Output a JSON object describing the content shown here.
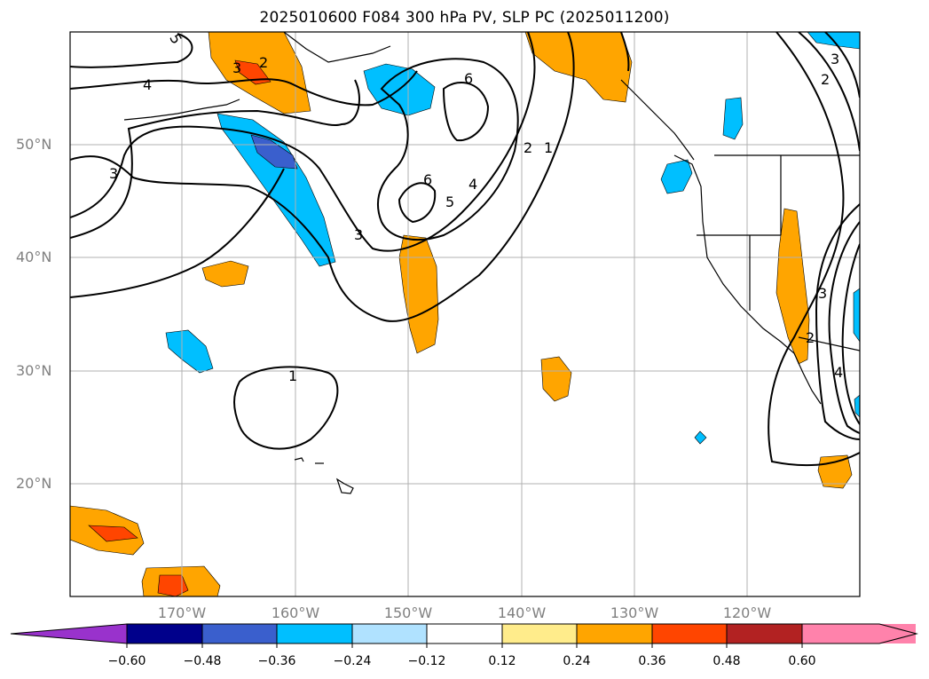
{
  "title": "2025010600 F084 300 hPa PV, SLP PC (2025011200)",
  "latitude_labels": [
    "50°N",
    "40°N",
    "30°N",
    "20°N"
  ],
  "longitude_labels": [
    "170°W",
    "160°W",
    "150°W",
    "140°W",
    "130°W",
    "120°W"
  ],
  "contour_labels": [
    "5",
    "4",
    "3",
    "3",
    "2",
    "6",
    "6",
    "5",
    "4",
    "3",
    "2",
    "1",
    "1",
    "3",
    "2",
    "2",
    "3",
    "4"
  ],
  "colorbar": {
    "ticks": [
      "−0.60",
      "−0.48",
      "−0.36",
      "−0.24",
      "−0.12",
      "0.12",
      "0.24",
      "0.36",
      "0.48",
      "0.60"
    ],
    "colors": [
      "#9932cc",
      "#00008b",
      "#3a5fcd",
      "#00bfff",
      "#b0e2ff",
      "#ffffff",
      "#ffec8b",
      "#ffa500",
      "#ff4500",
      "#b22222",
      "#ff82ab"
    ]
  }
}
